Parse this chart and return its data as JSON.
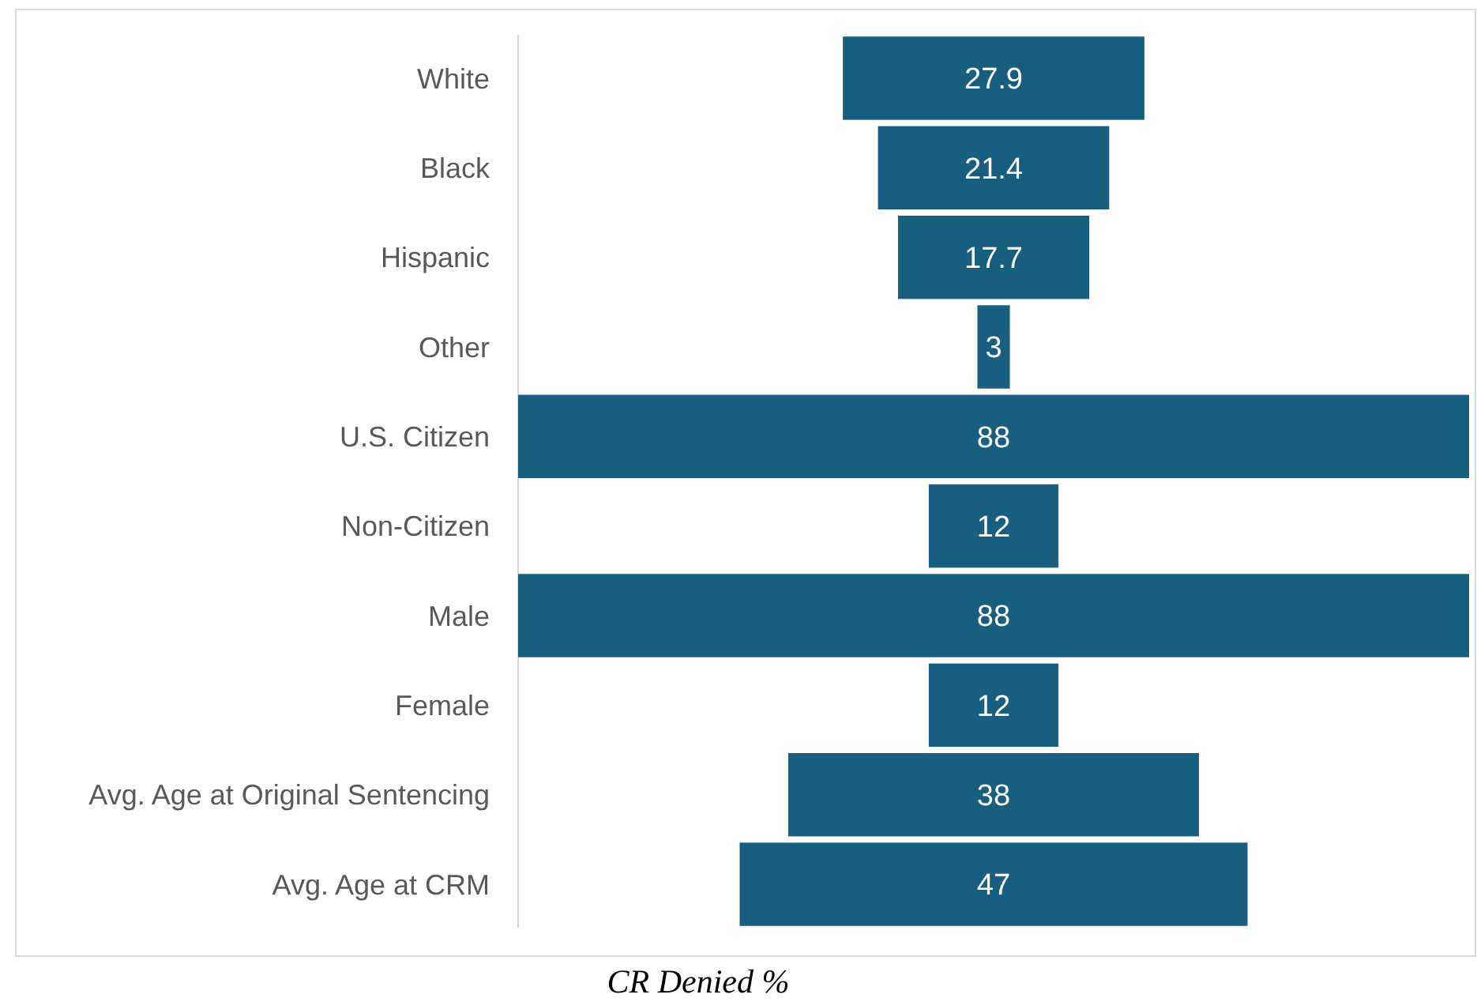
{
  "chart_data": {
    "type": "other",
    "xlabel": "CR Denied %",
    "categories": [
      "White",
      "Black",
      "Hispanic",
      "Other",
      "U.S. Citizen",
      "Non-Citizen",
      "Male",
      "Female",
      "Avg. Age at Original Sentencing",
      "Avg. Age at CRM"
    ],
    "values": [
      27.9,
      21.4,
      17.7,
      3,
      88,
      12,
      88,
      12,
      38,
      47
    ],
    "color": "#175e7f",
    "data_labels": true
  }
}
